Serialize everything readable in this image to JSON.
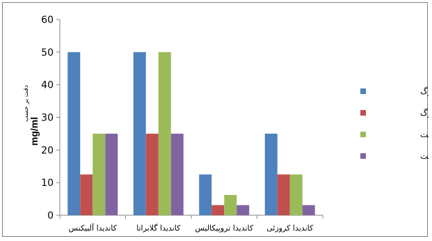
{
  "chart_data": {
    "type": "bar",
    "categories": [
      "کاندیدا آلبیکنس",
      "کاندیدا گلابراتا",
      "کاندیدا تروپیکالیس",
      "کاندیدا کروزئی"
    ],
    "series": [
      {
        "name": "عصاره آبی برگ",
        "color": "#4f81bd",
        "values": [
          50,
          50,
          12.5,
          25
        ]
      },
      {
        "name": "عصاره الکلی برگ",
        "color": "#c0504d",
        "values": [
          12.5,
          25,
          3.1,
          12.5
        ]
      },
      {
        "name": "عصاره آبی پوست",
        "color": "#9bbb59",
        "values": [
          25,
          50,
          6.2,
          12.5
        ]
      },
      {
        "name": "عصاره الکلی پوست",
        "color": "#8064a2",
        "values": [
          25,
          25,
          3.1,
          3.1
        ]
      }
    ],
    "ylabel": "mg/ml",
    "ylabel_secondary": "دقت بر حسب",
    "xlabel": "",
    "ylim": [
      0,
      60
    ],
    "yticks": [
      0,
      10,
      20,
      30,
      40,
      50,
      60
    ],
    "grid": false,
    "legend_position": "right"
  }
}
